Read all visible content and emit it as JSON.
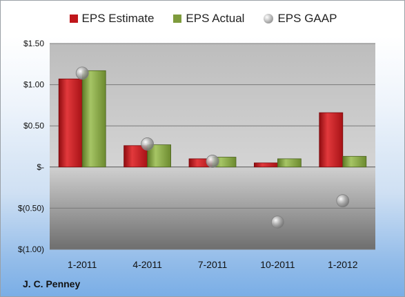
{
  "company": "J. C. Penney",
  "chart_data": {
    "type": "bar",
    "categories": [
      "1-2011",
      "4-2011",
      "7-2011",
      "10-2011",
      "1-2012"
    ],
    "series": [
      {
        "name": "EPS Estimate",
        "kind": "bar",
        "color": "#c0161b",
        "values": [
          1.07,
          0.26,
          0.1,
          0.05,
          0.66
        ]
      },
      {
        "name": "EPS Actual",
        "kind": "bar",
        "color": "#7e9b3c",
        "values": [
          1.17,
          0.27,
          0.12,
          0.1,
          0.13
        ]
      },
      {
        "name": "EPS GAAP",
        "kind": "marker",
        "color": "#a9a9a9",
        "values": [
          1.14,
          0.28,
          0.07,
          -0.67,
          -0.41
        ]
      }
    ],
    "ylim": [
      -1.0,
      1.5
    ],
    "yticks": [
      1.5,
      1.0,
      0.5,
      0,
      -0.5,
      -1.0
    ],
    "ytick_labels": [
      "$1.50",
      "$1.00",
      "$0.50",
      "$-",
      "$(0.50)",
      "$(1.00)"
    ],
    "grid": true,
    "legend": "top"
  }
}
